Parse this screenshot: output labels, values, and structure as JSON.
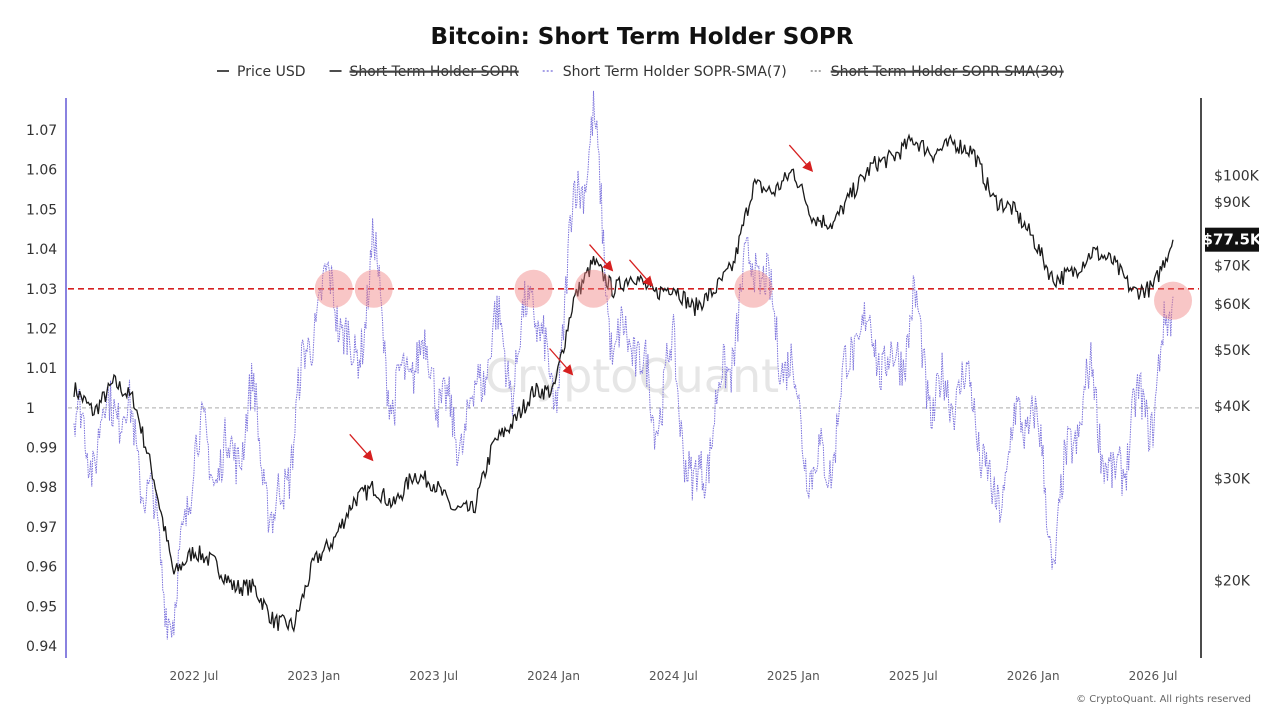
{
  "chart_data": {
    "type": "line",
    "title": "Bitcoin: Short Term Holder SOPR",
    "legend": [
      {
        "name": "Price USD",
        "style": "solid",
        "color": "#222222",
        "disabled": false
      },
      {
        "name": "Short Term Holder SOPR",
        "style": "solid",
        "color": "#222222",
        "disabled": true
      },
      {
        "name": "Short Term Holder SOPR-SMA(7)",
        "style": "dotted",
        "color": "#8a82e0",
        "disabled": false
      },
      {
        "name": "Short Term Holder SOPR-SMA(30)",
        "style": "dotted",
        "color": "#888888",
        "disabled": true
      }
    ],
    "x_ticks": [
      "2022 Jul",
      "2023 Jan",
      "2023 Jul",
      "2024 Jan",
      "2024 Jul",
      "2025 Jan",
      "2025 Jul",
      "2026 Jan",
      "2026 Jul"
    ],
    "x_range": [
      "2022-01",
      "2026-09"
    ],
    "left_axis": {
      "ticks": [
        "1.07",
        "1.06",
        "1.05",
        "1.04",
        "1.03",
        "1.02",
        "1.01",
        "1",
        "0.99",
        "0.98",
        "0.97",
        "0.96",
        "0.95",
        "0.94"
      ],
      "ylim": [
        0.94,
        1.07
      ]
    },
    "right_axis": {
      "scale": "log",
      "ticks": [
        "$100K",
        "$90K",
        "$70K",
        "$60K",
        "$50K",
        "$40K",
        "$30K",
        "$20K"
      ],
      "ylim": [
        15000,
        135000
      ],
      "current_value_label": "$77.5K"
    },
    "reference_lines": [
      {
        "value": 1.03,
        "color": "#d62020",
        "style": "dashed"
      },
      {
        "value": 1.0,
        "color": "#bbbbbb",
        "style": "dashed"
      }
    ],
    "highlight_points": [
      {
        "x": "2023-02",
        "y": 1.03
      },
      {
        "x": "2023-04",
        "y": 1.03
      },
      {
        "x": "2023-12",
        "y": 1.03
      },
      {
        "x": "2024-03",
        "y": 1.03
      },
      {
        "x": "2024-11",
        "y": 1.03
      },
      {
        "x": "2026-08",
        "y": 1.027
      }
    ],
    "arrows": [
      {
        "x": "2023-04",
        "price": 32000
      },
      {
        "x": "2024-02",
        "price": 45000
      },
      {
        "x": "2024-04",
        "price": 68000
      },
      {
        "x": "2024-06",
        "price": 64000
      },
      {
        "x": "2025-02",
        "price": 101000
      }
    ],
    "series": [
      {
        "name": "Price USD",
        "axis": "right",
        "points": [
          [
            "2022-01",
            43000
          ],
          [
            "2022-02",
            39000
          ],
          [
            "2022-03",
            44000
          ],
          [
            "2022-04",
            41000
          ],
          [
            "2022-05",
            30000
          ],
          [
            "2022-06",
            20500
          ],
          [
            "2022-07",
            22500
          ],
          [
            "2022-08",
            21500
          ],
          [
            "2022-09",
            19500
          ],
          [
            "2022-10",
            19500
          ],
          [
            "2022-11",
            17000
          ],
          [
            "2022-12",
            16700
          ],
          [
            "2023-01",
            21500
          ],
          [
            "2023-02",
            23500
          ],
          [
            "2023-03",
            27500
          ],
          [
            "2023-04",
            29000
          ],
          [
            "2023-05",
            27000
          ],
          [
            "2023-06",
            30500
          ],
          [
            "2023-07",
            29500
          ],
          [
            "2023-08",
            26500
          ],
          [
            "2023-09",
            26500
          ],
          [
            "2023-10",
            34500
          ],
          [
            "2023-11",
            37500
          ],
          [
            "2023-12",
            42500
          ],
          [
            "2024-01",
            42500
          ],
          [
            "2024-02",
            61000
          ],
          [
            "2024-03",
            71000
          ],
          [
            "2024-04",
            63500
          ],
          [
            "2024-05",
            67500
          ],
          [
            "2024-06",
            62500
          ],
          [
            "2024-07",
            64500
          ],
          [
            "2024-08",
            59000
          ],
          [
            "2024-09",
            63000
          ],
          [
            "2024-10",
            70000
          ],
          [
            "2024-11",
            96500
          ],
          [
            "2024-12",
            93500
          ],
          [
            "2025-01",
            102000
          ],
          [
            "2025-02",
            84500
          ],
          [
            "2025-03",
            82500
          ],
          [
            "2025-04",
            94000
          ],
          [
            "2025-05",
            104500
          ],
          [
            "2025-06",
            107500
          ],
          [
            "2025-07",
            115500
          ],
          [
            "2025-08",
            109000
          ],
          [
            "2025-09",
            114000
          ],
          [
            "2025-10",
            110000
          ],
          [
            "2025-11",
            91000
          ],
          [
            "2025-12",
            87500
          ],
          [
            "2026-01",
            78000
          ],
          [
            "2026-02",
            66000
          ],
          [
            "2026-03",
            68000
          ],
          [
            "2026-04",
            74000
          ],
          [
            "2026-05",
            71000
          ],
          [
            "2026-06",
            63000
          ],
          [
            "2026-07",
            64000
          ],
          [
            "2026-08",
            77500
          ]
        ]
      },
      {
        "name": "Short Term Holder SOPR-SMA(7)",
        "axis": "left",
        "points": [
          [
            "2022-01",
            0.997
          ],
          [
            "2022-02",
            0.989
          ],
          [
            "2022-03",
            1.004
          ],
          [
            "2022-04",
            0.993
          ],
          [
            "2022-05",
            0.972
          ],
          [
            "2022-06",
            0.944
          ],
          [
            "2022-07",
            0.993
          ],
          [
            "2022-08",
            0.986
          ],
          [
            "2022-09",
            0.988
          ],
          [
            "2022-10",
            1.002
          ],
          [
            "2022-11",
            0.968
          ],
          [
            "2022-12",
            0.994
          ],
          [
            "2023-01",
            1.024
          ],
          [
            "2023-02",
            1.031
          ],
          [
            "2023-03",
            1.008
          ],
          [
            "2023-04",
            1.039
          ],
          [
            "2023-05",
            0.999
          ],
          [
            "2023-06",
            1.014
          ],
          [
            "2023-07",
            1.01
          ],
          [
            "2023-08",
            0.992
          ],
          [
            "2023-09",
            1.0
          ],
          [
            "2023-10",
            1.021
          ],
          [
            "2023-11",
            1.008
          ],
          [
            "2023-12",
            1.031
          ],
          [
            "2024-01",
            0.998
          ],
          [
            "2024-02",
            1.05
          ],
          [
            "2024-03",
            1.071
          ],
          [
            "2024-04",
            1.013
          ],
          [
            "2024-05",
            1.019
          ],
          [
            "2024-06",
            0.998
          ],
          [
            "2024-07",
            1.013
          ],
          [
            "2024-08",
            0.976
          ],
          [
            "2024-09",
            0.996
          ],
          [
            "2024-10",
            1.017
          ],
          [
            "2024-11",
            1.041
          ],
          [
            "2024-12",
            1.022
          ],
          [
            "2025-01",
            1.006
          ],
          [
            "2025-02",
            0.982
          ],
          [
            "2025-03",
            0.99
          ],
          [
            "2025-04",
            1.019
          ],
          [
            "2025-05",
            1.018
          ],
          [
            "2025-06",
            1.008
          ],
          [
            "2025-07",
            1.025
          ],
          [
            "2025-08",
            1.0
          ],
          [
            "2025-09",
            1.006
          ],
          [
            "2025-10",
            1.003
          ],
          [
            "2025-11",
            0.972
          ],
          [
            "2025-12",
            0.993
          ],
          [
            "2026-01",
            1.001
          ],
          [
            "2026-02",
            0.963
          ],
          [
            "2026-03",
            0.994
          ],
          [
            "2026-04",
            1.007
          ],
          [
            "2026-05",
            0.977
          ],
          [
            "2026-06",
            0.998
          ],
          [
            "2026-07",
            1.0
          ],
          [
            "2026-08",
            1.028
          ]
        ]
      }
    ]
  },
  "watermark": "CryptoQuant",
  "credit": "© CryptoQuant. All rights reserved"
}
